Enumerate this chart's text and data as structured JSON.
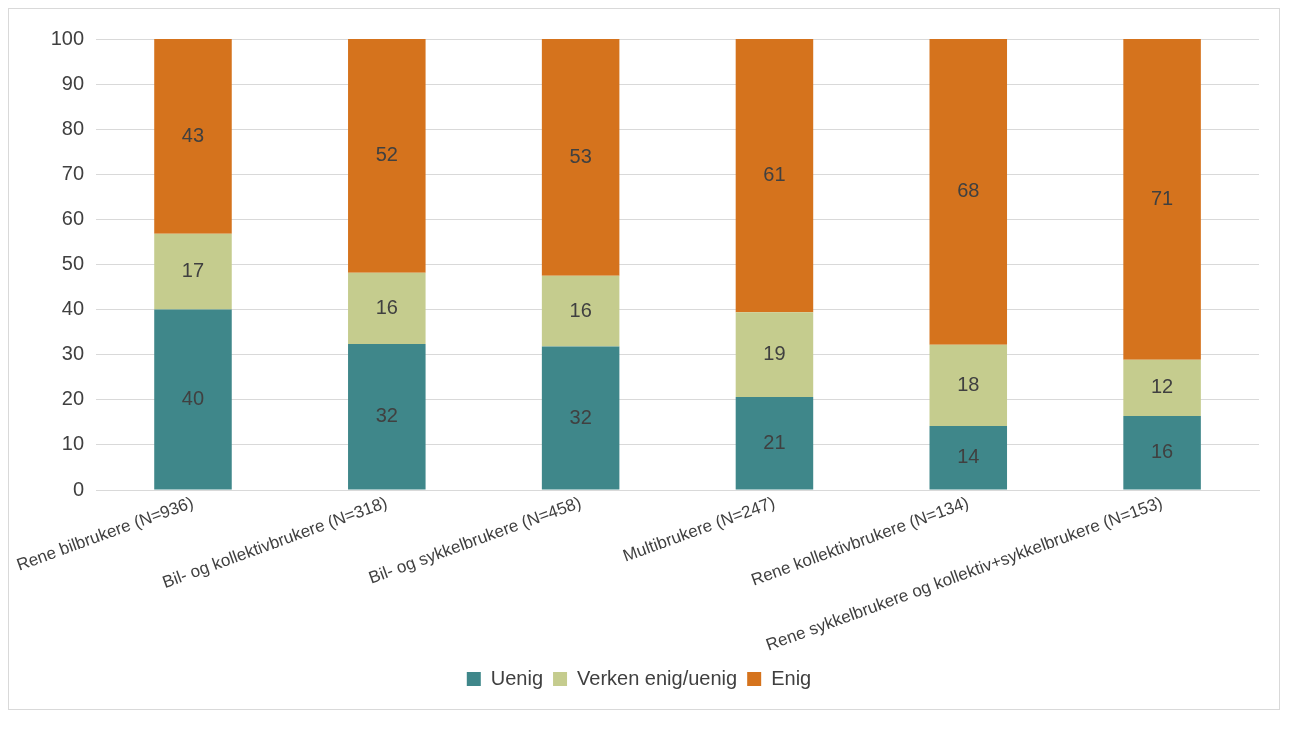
{
  "chart_data": {
    "type": "bar",
    "stacked": true,
    "categories": [
      "Rene bilbrukere (N=936)",
      "Bil- og kollektivbrukere (N=318)",
      "Bil- og sykkelbrukere (N=458)",
      "Multibrukere (N=247)",
      "Rene kollektivbrukere (N=134)",
      "Rene sykkelbrukere og kollektiv+sykkelbrukere (N=153)"
    ],
    "series": [
      {
        "name": "Uenig",
        "color": "#3f878a",
        "values": [
          40,
          32.4,
          31.8,
          20.6,
          14.2,
          16.4
        ],
        "value_labels": [
          "40",
          "32",
          "32",
          "21",
          "14",
          "16"
        ]
      },
      {
        "name": "Verken enig/uenig",
        "color": "#c5cc8e",
        "values": [
          16.8,
          15.8,
          15.7,
          18.8,
          18,
          12.5
        ],
        "value_labels": [
          "17",
          "16",
          "16",
          "19",
          "18",
          "12"
        ]
      },
      {
        "name": "Enig",
        "color": "#d5731d",
        "values": [
          43.2,
          51.8,
          52.5,
          60.6,
          67.8,
          71.1
        ],
        "value_labels": [
          "43",
          "52",
          "53",
          "61",
          "68",
          "71"
        ]
      }
    ],
    "ylim": [
      0,
      100
    ],
    "yticks": [
      0,
      10,
      20,
      30,
      40,
      50,
      60,
      70,
      80,
      90,
      100
    ],
    "grid": "y",
    "legend": "bottom"
  }
}
